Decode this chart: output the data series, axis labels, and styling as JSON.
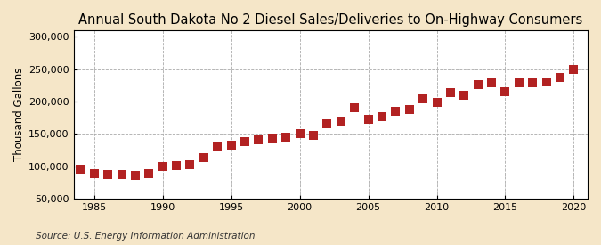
{
  "title": "Annual South Dakota No 2 Diesel Sales/Deliveries to On-Highway Consumers",
  "ylabel": "Thousand Gallons",
  "source": "Source: U.S. Energy Information Administration",
  "figure_background_color": "#f5e6c8",
  "plot_background_color": "#ffffff",
  "marker_color": "#b22222",
  "grid_color": "#aaaaaa",
  "years": [
    1984,
    1985,
    1986,
    1987,
    1988,
    1989,
    1990,
    1991,
    1992,
    1993,
    1994,
    1995,
    1996,
    1997,
    1998,
    1999,
    2000,
    2001,
    2002,
    2003,
    2004,
    2005,
    2006,
    2007,
    2008,
    2009,
    2010,
    2011,
    2012,
    2013,
    2014,
    2015,
    2016,
    2017,
    2018,
    2019,
    2020
  ],
  "values": [
    95000,
    88000,
    87000,
    87000,
    86000,
    88000,
    100000,
    101000,
    103000,
    114000,
    131000,
    133000,
    138000,
    141000,
    143000,
    145000,
    150000,
    148000,
    165000,
    170000,
    191000,
    172000,
    177000,
    185000,
    188000,
    204000,
    199000,
    214000,
    210000,
    226000,
    229000,
    215000,
    229000,
    229000,
    230000,
    237000,
    249000
  ],
  "xlim": [
    1983.5,
    2021
  ],
  "ylim": [
    50000,
    310000
  ],
  "xticks": [
    1985,
    1990,
    1995,
    2000,
    2005,
    2010,
    2015,
    2020
  ],
  "yticks": [
    50000,
    100000,
    150000,
    200000,
    250000,
    300000
  ],
  "ytick_labels": [
    "50,000",
    "100,000",
    "150,000",
    "200,000",
    "250,000",
    "300,000"
  ],
  "title_fontsize": 10.5,
  "label_fontsize": 8.5,
  "tick_fontsize": 8,
  "source_fontsize": 7.5,
  "marker_size": 3.5
}
